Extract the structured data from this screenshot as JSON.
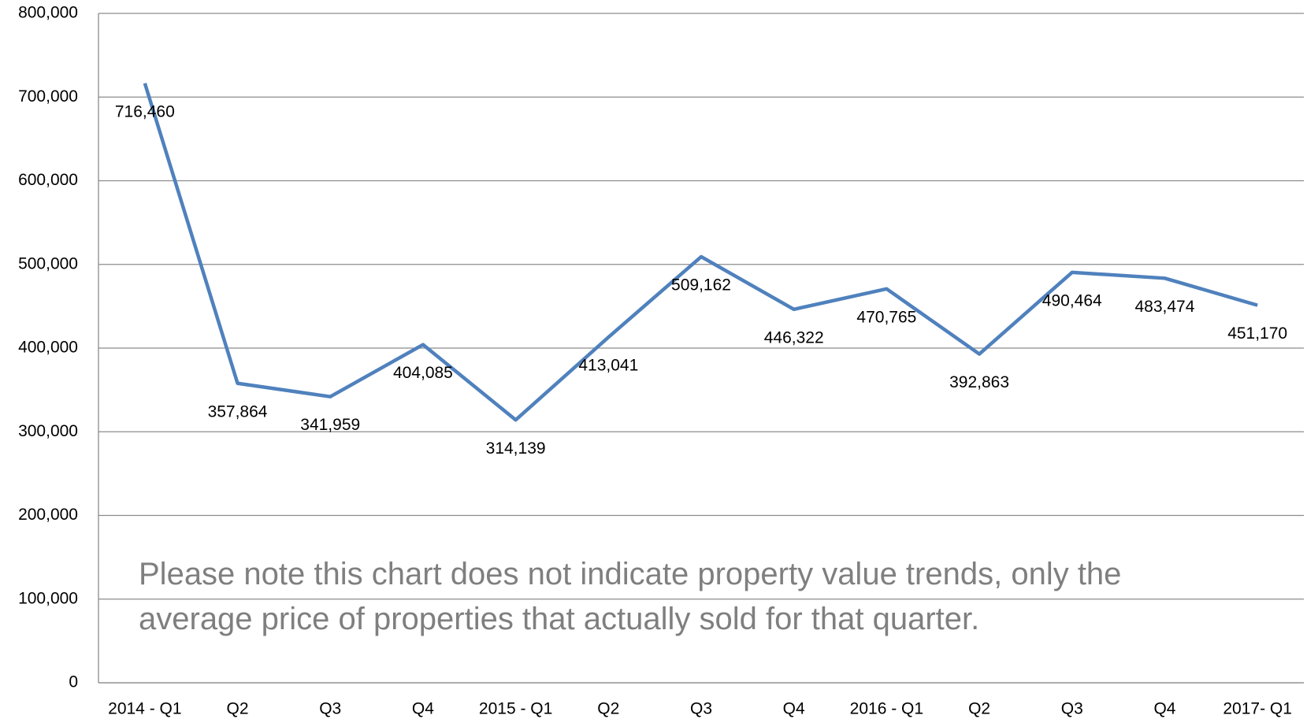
{
  "chart_data": {
    "type": "line",
    "categories": [
      "2014 - Q1",
      "Q2",
      "Q3",
      "Q4",
      "2015 - Q1",
      "Q2",
      "Q3",
      "Q4",
      "2016 - Q1",
      "Q2",
      "Q3",
      "Q4",
      "2017- Q1"
    ],
    "values": [
      716460,
      357864,
      341959,
      404085,
      314139,
      413041,
      509162,
      446322,
      470765,
      392863,
      490464,
      483474,
      451170
    ],
    "value_labels": [
      "716,460",
      "357,864",
      "341,959",
      "404,085",
      "314,139",
      "413,041",
      "509,162",
      "446,322",
      "470,765",
      "392,863",
      "490,464",
      "483,474",
      "451,170"
    ],
    "color": "#4f81bd",
    "ylim": [
      0,
      800000
    ],
    "yticks": [
      0,
      {
        "value": 100000,
        "label": "100,000"
      },
      {
        "value": 200000,
        "label": "200,000"
      },
      {
        "value": 300000,
        "label": "300,000"
      },
      {
        "value": 400000,
        "label": "400,000"
      },
      {
        "value": 500000,
        "label": "500,000"
      },
      {
        "value": 600000,
        "label": "600,000"
      },
      {
        "value": 700000,
        "label": "700,000"
      },
      {
        "value": 800000,
        "label": "800,000"
      }
    ],
    "grid": true,
    "annotation": [
      "Please note this chart does not indicate property value trends, only the",
      "average price of properties that actually sold for that quarter."
    ]
  }
}
